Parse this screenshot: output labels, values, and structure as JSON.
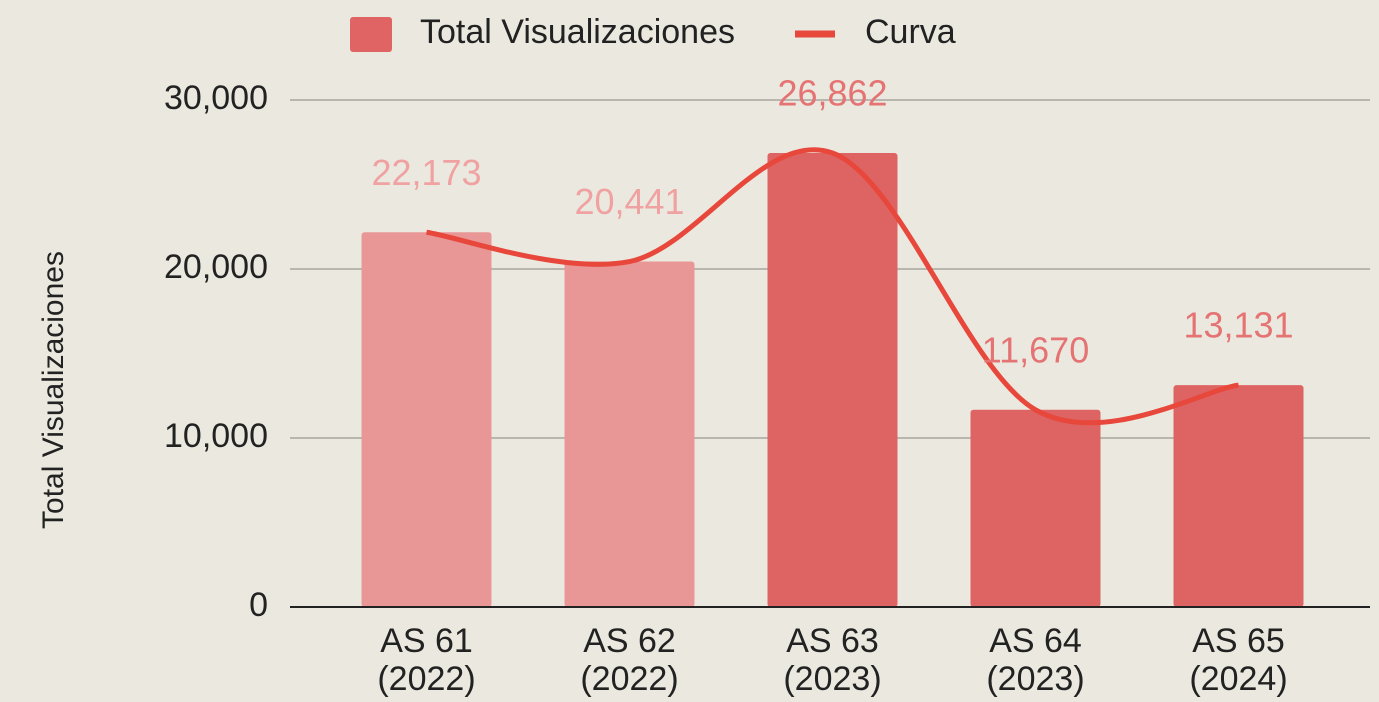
{
  "chart_data": {
    "type": "bar_line",
    "y_label": "Total Visualizaciones",
    "categories": [
      [
        "AS 61",
        "(2022)"
      ],
      [
        "AS 62",
        "(2022)"
      ],
      [
        "AS 63",
        "(2023)"
      ],
      [
        "AS 64",
        "(2023)"
      ],
      [
        "AS 65",
        "(2024)"
      ]
    ],
    "series": [
      {
        "name": "Total Visualizaciones",
        "type": "bar",
        "color": "#e06464",
        "colors": [
          "#e99696",
          "#e99696",
          "#de6464",
          "#de6464",
          "#de6464"
        ],
        "values": [
          22173,
          20441,
          26862,
          11670,
          13131
        ],
        "value_labels": [
          "22,173",
          "20,441",
          "26,862",
          "11,670",
          "13,131"
        ],
        "label_colors": [
          "#f0a2a2",
          "#f0a2a2",
          "#e57373",
          "#e57373",
          "#e57373"
        ]
      },
      {
        "name": "Curva",
        "type": "line",
        "color": "#e8473b",
        "smooth": true,
        "values": [
          22173,
          20441,
          26862,
          11670,
          13131
        ]
      }
    ],
    "ylim": [
      0,
      30000
    ],
    "yticks": [
      0,
      {
        "value": 10000,
        "label": "10,000"
      },
      {
        "value": 20000,
        "label": "20,000"
      },
      {
        "value": 30000,
        "label": "30,000"
      }
    ],
    "grid": true,
    "legend": "top"
  }
}
